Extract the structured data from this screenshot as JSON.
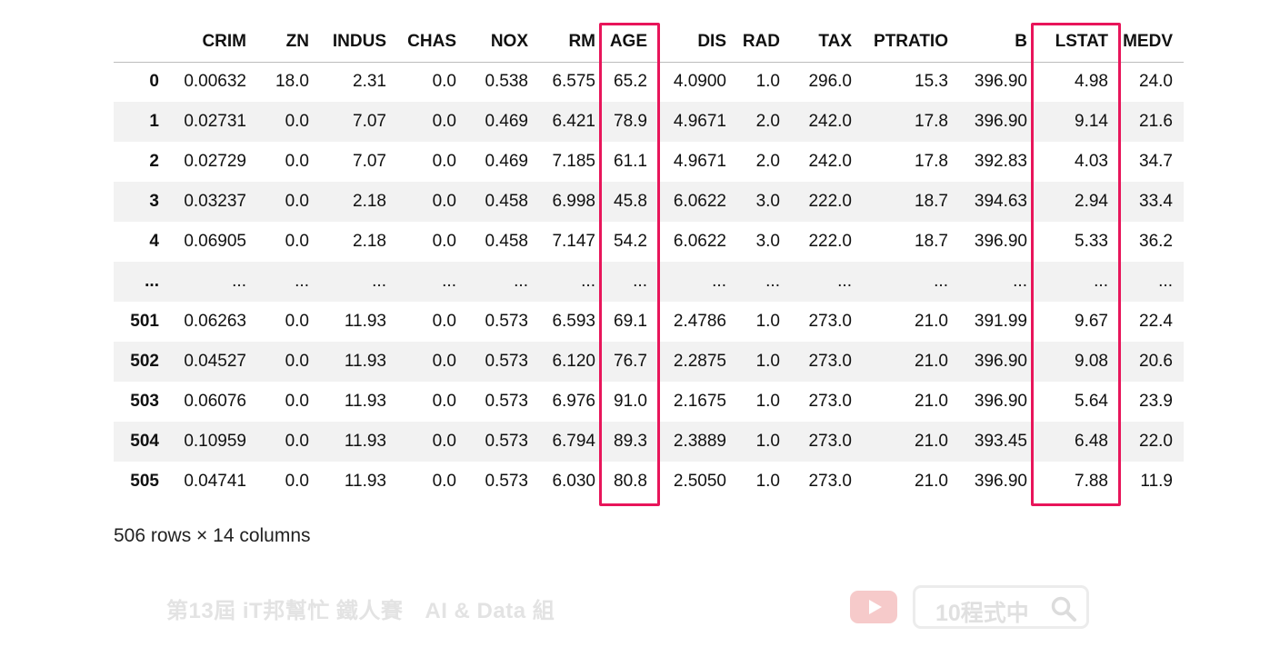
{
  "table": {
    "columns": [
      "",
      "CRIM",
      "ZN",
      "INDUS",
      "CHAS",
      "NOX",
      "RM",
      "AGE",
      "DIS",
      "RAD",
      "TAX",
      "PTRATIO",
      "B",
      "LSTAT",
      "MEDV"
    ],
    "rows": [
      [
        "0",
        "0.00632",
        "18.0",
        "2.31",
        "0.0",
        "0.538",
        "6.575",
        "65.2",
        "4.0900",
        "1.0",
        "296.0",
        "15.3",
        "396.90",
        "4.98",
        "24.0"
      ],
      [
        "1",
        "0.02731",
        "0.0",
        "7.07",
        "0.0",
        "0.469",
        "6.421",
        "78.9",
        "4.9671",
        "2.0",
        "242.0",
        "17.8",
        "396.90",
        "9.14",
        "21.6"
      ],
      [
        "2",
        "0.02729",
        "0.0",
        "7.07",
        "0.0",
        "0.469",
        "7.185",
        "61.1",
        "4.9671",
        "2.0",
        "242.0",
        "17.8",
        "392.83",
        "4.03",
        "34.7"
      ],
      [
        "3",
        "0.03237",
        "0.0",
        "2.18",
        "0.0",
        "0.458",
        "6.998",
        "45.8",
        "6.0622",
        "3.0",
        "222.0",
        "18.7",
        "394.63",
        "2.94",
        "33.4"
      ],
      [
        "4",
        "0.06905",
        "0.0",
        "2.18",
        "0.0",
        "0.458",
        "7.147",
        "54.2",
        "6.0622",
        "3.0",
        "222.0",
        "18.7",
        "396.90",
        "5.33",
        "36.2"
      ],
      [
        "...",
        "...",
        "...",
        "...",
        "...",
        "...",
        "...",
        "...",
        "...",
        "...",
        "...",
        "...",
        "...",
        "...",
        "..."
      ],
      [
        "501",
        "0.06263",
        "0.0",
        "11.93",
        "0.0",
        "0.573",
        "6.593",
        "69.1",
        "2.4786",
        "1.0",
        "273.0",
        "21.0",
        "391.99",
        "9.67",
        "22.4"
      ],
      [
        "502",
        "0.04527",
        "0.0",
        "11.93",
        "0.0",
        "0.573",
        "6.120",
        "76.7",
        "2.2875",
        "1.0",
        "273.0",
        "21.0",
        "396.90",
        "9.08",
        "20.6"
      ],
      [
        "503",
        "0.06076",
        "0.0",
        "11.93",
        "0.0",
        "0.573",
        "6.976",
        "91.0",
        "2.1675",
        "1.0",
        "273.0",
        "21.0",
        "396.90",
        "5.64",
        "23.9"
      ],
      [
        "504",
        "0.10959",
        "0.0",
        "11.93",
        "0.0",
        "0.573",
        "6.794",
        "89.3",
        "2.3889",
        "1.0",
        "273.0",
        "21.0",
        "393.45",
        "6.48",
        "22.0"
      ],
      [
        "505",
        "0.04741",
        "0.0",
        "11.93",
        "0.0",
        "0.573",
        "6.030",
        "80.8",
        "2.5050",
        "1.0",
        "273.0",
        "21.0",
        "396.90",
        "7.88",
        "11.9"
      ]
    ],
    "highlighted_columns": [
      "AGE",
      "LSTAT"
    ],
    "highlight_color": "#e8155a",
    "stripe_color": "#f2f2f2"
  },
  "caption": "506 rows × 14 columns",
  "watermark": {
    "left_text": "第13屆 iT邦幫忙 鐵人賽",
    "left_text_2": "AI & Data 組",
    "channel_text": "10程式中",
    "youtube_icon": "youtube-play-icon",
    "search_icon": "magnifier-icon",
    "youtube_color": "#f6caca",
    "watermark_color": "#e0e0e0"
  }
}
